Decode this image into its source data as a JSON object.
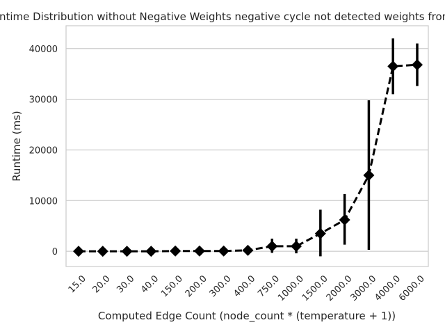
{
  "chart_data": {
    "type": "line",
    "title": "Runtime Distribution without Negative Weights negative cycle not detected weights from",
    "xlabel": "Computed Edge Count (node_count * (temperature + 1))",
    "ylabel": "Runtime (ms)",
    "categories": [
      "15.0",
      "20.0",
      "30.0",
      "40.0",
      "150.0",
      "200.0",
      "300.0",
      "400.0",
      "750.0",
      "1000.0",
      "1500.0",
      "2000.0",
      "3000.0",
      "4000.0",
      "6000.0"
    ],
    "series": [
      {
        "values": [
          0,
          0,
          0,
          0,
          50,
          50,
          50,
          200,
          1000,
          1000,
          3500,
          6200,
          15000,
          36500,
          36800
        ],
        "error_low": [
          0,
          0,
          0,
          0,
          0,
          0,
          0,
          0,
          -300,
          -400,
          -1000,
          1300,
          300,
          31000,
          32600
        ],
        "error_high": [
          0,
          0,
          0,
          0,
          100,
          100,
          100,
          400,
          2500,
          2500,
          8200,
          11300,
          29800,
          42000,
          41000
        ],
        "color": "#000000",
        "linestyle": "dashed",
        "marker": "diamond"
      }
    ],
    "yticks": [
      0,
      10000,
      20000,
      30000,
      40000
    ],
    "ytick_labels": [
      "0",
      "10000",
      "20000",
      "30000",
      "40000"
    ],
    "ylim": [
      -3000,
      44500
    ],
    "grid": "horizontal",
    "style": "seaborn-whitegrid"
  }
}
